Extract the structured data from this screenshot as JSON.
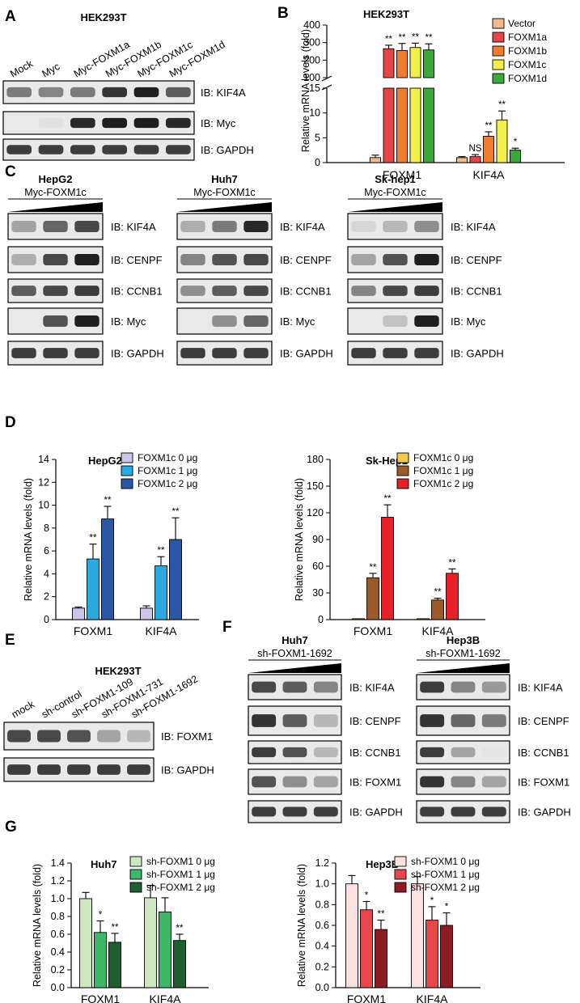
{
  "panel_letters": [
    "A",
    "B",
    "C",
    "D",
    "E",
    "F",
    "G"
  ],
  "A": {
    "title": "HEK293T",
    "lanes": [
      "Mock",
      "Myc",
      "Myc-FOXM1a",
      "Myc-FOXM1b",
      "Myc-FOXM1c",
      "Myc-FOXM1d"
    ],
    "blots": [
      {
        "label": "IB: KIF4A",
        "intensity": [
          0.55,
          0.5,
          0.55,
          0.9,
          1.0,
          0.7
        ]
      },
      {
        "label": "IB: Myc",
        "intensity": [
          0.02,
          0.04,
          0.95,
          1.0,
          1.0,
          0.95
        ]
      },
      {
        "label": "IB: GAPDH",
        "intensity": [
          0.85,
          0.85,
          0.85,
          0.85,
          0.85,
          0.85
        ]
      }
    ]
  },
  "C": {
    "groups": [
      {
        "cell": "HepG2",
        "treatment": "Myc-FOXM1c",
        "blots": [
          {
            "label": "IB: KIF4A",
            "intensity": [
              0.35,
              0.65,
              0.8
            ]
          },
          {
            "label": "IB: CENPF",
            "intensity": [
              0.3,
              0.8,
              1.0
            ]
          },
          {
            "label": "IB: CCNB1",
            "intensity": [
              0.7,
              0.8,
              0.85
            ]
          },
          {
            "label": "IB: Myc",
            "intensity": [
              0.02,
              0.75,
              1.0
            ]
          },
          {
            "label": "IB: GAPDH",
            "intensity": [
              0.85,
              0.85,
              0.85
            ]
          }
        ]
      },
      {
        "cell": "Huh7",
        "treatment": "Myc-FOXM1c",
        "blots": [
          {
            "label": "IB: KIF4A",
            "intensity": [
              0.3,
              0.55,
              0.95
            ]
          },
          {
            "label": "IB: CENPF",
            "intensity": [
              0.5,
              0.75,
              0.8
            ]
          },
          {
            "label": "IB: CCNB1",
            "intensity": [
              0.45,
              0.7,
              0.8
            ]
          },
          {
            "label": "IB: Myc",
            "intensity": [
              0.02,
              0.45,
              0.65
            ]
          },
          {
            "label": "IB: GAPDH",
            "intensity": [
              0.85,
              0.85,
              0.85
            ]
          }
        ]
      },
      {
        "cell": "Sk-hep1",
        "treatment": "Myc-FOXM1c",
        "blots": [
          {
            "label": "IB: KIF4A",
            "intensity": [
              0.1,
              0.25,
              0.45
            ]
          },
          {
            "label": "IB: CENPF",
            "intensity": [
              0.35,
              0.75,
              1.0
            ]
          },
          {
            "label": "IB: CCNB1",
            "intensity": [
              0.5,
              0.8,
              0.85
            ]
          },
          {
            "label": "IB: Myc",
            "intensity": [
              0.02,
              0.2,
              1.0
            ]
          },
          {
            "label": "IB: GAPDH",
            "intensity": [
              0.85,
              0.85,
              0.85
            ]
          }
        ]
      }
    ]
  },
  "E": {
    "title": "HEK293T",
    "lanes": [
      "mock",
      "sh-control",
      "sh-FOXM1-109",
      "sh-FOXM1-731",
      "sh-FOXM1-1692"
    ],
    "blots": [
      {
        "label": "IB: FOXM1",
        "intensity": [
          0.8,
          0.8,
          0.75,
          0.35,
          0.25
        ]
      },
      {
        "label": "IB: GAPDH",
        "intensity": [
          0.85,
          0.85,
          0.85,
          0.85,
          0.85
        ]
      }
    ]
  },
  "F": {
    "groups": [
      {
        "cell": "Huh7",
        "treatment": "sh-FOXM1-1692",
        "blots": [
          {
            "label": "IB: KIF4A",
            "intensity": [
              0.8,
              0.7,
              0.5
            ]
          },
          {
            "label": "IB: CENPF",
            "intensity": [
              0.9,
              0.7,
              0.25
            ]
          },
          {
            "label": "IB: CCNB1",
            "intensity": [
              0.85,
              0.75,
              0.25
            ]
          },
          {
            "label": "IB: FOXM1",
            "intensity": [
              0.75,
              0.45,
              0.35
            ]
          },
          {
            "label": "IB: GAPDH",
            "intensity": [
              0.85,
              0.85,
              0.85
            ]
          }
        ]
      },
      {
        "cell": "Hep3B",
        "treatment": "sh-FOXM1-1692",
        "blots": [
          {
            "label": "IB: KIF4A",
            "intensity": [
              0.85,
              0.5,
              0.4
            ]
          },
          {
            "label": "IB: CENPF",
            "intensity": [
              0.9,
              0.65,
              0.55
            ]
          },
          {
            "label": "IB: CCNB1",
            "intensity": [
              0.85,
              0.35,
              0.03
            ]
          },
          {
            "label": "IB: FOXM1",
            "intensity": [
              0.9,
              0.5,
              0.35
            ]
          },
          {
            "label": "IB: GAPDH",
            "intensity": [
              0.85,
              0.85,
              0.85
            ]
          }
        ]
      }
    ]
  },
  "chart_data": [
    {
      "id": "B",
      "type": "bar",
      "title": "HEK293T",
      "ylabel": "Relative mRNA levels (fold)",
      "categories": [
        "FOXM1",
        "KIF4A"
      ],
      "axis_break": {
        "lower": [
          0,
          15
        ],
        "upper": [
          100,
          400
        ]
      },
      "lower_ticks": [
        0,
        5,
        10,
        15
      ],
      "upper_ticks": [
        100,
        200,
        300,
        400
      ],
      "series": [
        {
          "name": "Vector",
          "color": "#f2b98c",
          "values": [
            1.0,
            1.0
          ],
          "errors": [
            0.5,
            0.2
          ],
          "sig": [
            "",
            ""
          ]
        },
        {
          "name": "FOXM1a",
          "color": "#e64548",
          "values": [
            265,
            1.2
          ],
          "errors": [
            20,
            0.4
          ],
          "sig": [
            "**",
            "NS"
          ]
        },
        {
          "name": "FOXM1b",
          "color": "#f07d2b",
          "values": [
            255,
            5.3
          ],
          "errors": [
            40,
            0.9
          ],
          "sig": [
            "**",
            "**"
          ]
        },
        {
          "name": "FOXM1c",
          "color": "#f3ef4a",
          "values": [
            272,
            8.6
          ],
          "errors": [
            25,
            1.8
          ],
          "sig": [
            "**",
            "**"
          ]
        },
        {
          "name": "FOXM1d",
          "color": "#3aa83a",
          "values": [
            258,
            2.5
          ],
          "errors": [
            35,
            0.4
          ],
          "sig": [
            "**",
            "*"
          ]
        }
      ]
    },
    {
      "id": "D-left",
      "type": "bar",
      "title": "HepG2",
      "ylabel": "Relative mRNA levels (fold)",
      "categories": [
        "FOXM1",
        "KIF4A"
      ],
      "ylim": [
        0,
        14
      ],
      "yticks": [
        0,
        2,
        4,
        6,
        8,
        10,
        12,
        14
      ],
      "series": [
        {
          "name": "FOXM1c  0 μg",
          "color": "#c9c6ea",
          "values": [
            1.0,
            1.0
          ],
          "errors": [
            0.1,
            0.2
          ],
          "sig": [
            "",
            ""
          ]
        },
        {
          "name": "FOXM1c  1 μg",
          "color": "#2aa8e0",
          "values": [
            5.3,
            4.7
          ],
          "errors": [
            1.3,
            0.8
          ],
          "sig": [
            "**",
            "**"
          ]
        },
        {
          "name": "FOXM1c  2 μg",
          "color": "#2b57a6",
          "values": [
            8.8,
            7.0
          ],
          "errors": [
            1.1,
            1.9
          ],
          "sig": [
            "**",
            "**"
          ]
        }
      ]
    },
    {
      "id": "D-right",
      "type": "bar",
      "title": "Sk-Hep1",
      "ylabel": "Relative mRNA levels (fold)",
      "categories": [
        "FOXM1",
        "KIF4A"
      ],
      "ylim": [
        0,
        180
      ],
      "yticks": [
        0,
        30,
        60,
        90,
        120,
        150,
        180
      ],
      "series": [
        {
          "name": "FOXM1c  0 μg",
          "color": "#f2c94c",
          "values": [
            1.0,
            1.0
          ],
          "errors": [
            0,
            0
          ],
          "sig": [
            "",
            ""
          ]
        },
        {
          "name": "FOXM1c  1 μg",
          "color": "#9a5a2a",
          "values": [
            47,
            22
          ],
          "errors": [
            5,
            2
          ],
          "sig": [
            "**",
            "**"
          ]
        },
        {
          "name": "FOXM1c  2 μg",
          "color": "#e8202a",
          "values": [
            115,
            52
          ],
          "errors": [
            14,
            5
          ],
          "sig": [
            "**",
            "**"
          ]
        }
      ]
    },
    {
      "id": "G-left",
      "type": "bar",
      "title": "Huh7",
      "ylabel": "Relative mRNA levels (fold)",
      "categories": [
        "FOXM1",
        "KIF4A"
      ],
      "ylim": [
        0,
        1.4
      ],
      "yticks": [
        0,
        0.2,
        0.4,
        0.6,
        0.8,
        1.0,
        1.2,
        1.4
      ],
      "series": [
        {
          "name": "sh-FOXM1   0 μg",
          "color": "#cde8c0",
          "values": [
            1.0,
            1.01
          ],
          "errors": [
            0.07,
            0.14
          ],
          "sig": [
            "",
            ""
          ]
        },
        {
          "name": "sh-FOXM1   1 μg",
          "color": "#3db86b",
          "values": [
            0.62,
            0.85
          ],
          "errors": [
            0.13,
            0.16
          ],
          "sig": [
            "*",
            ""
          ]
        },
        {
          "name": "sh-FOXM1   2 μg",
          "color": "#1f5e2f",
          "values": [
            0.51,
            0.53
          ],
          "errors": [
            0.1,
            0.07
          ],
          "sig": [
            "**",
            "**"
          ]
        }
      ]
    },
    {
      "id": "G-right",
      "type": "bar",
      "title": "Hep3B",
      "ylabel": "Relative mRNA levels (fold)",
      "categories": [
        "FOXM1",
        "KIF4A"
      ],
      "ylim": [
        0,
        1.2
      ],
      "yticks": [
        0.0,
        0.2,
        0.4,
        0.6,
        0.8,
        1.0,
        1.2
      ],
      "series": [
        {
          "name": "sh-FOXM1   0 μg",
          "color": "#fbe1df",
          "values": [
            1.0,
            1.0
          ],
          "errors": [
            0.08,
            0.07
          ],
          "sig": [
            "",
            ""
          ]
        },
        {
          "name": "sh-FOXM1   1 μg",
          "color": "#e8484a",
          "values": [
            0.75,
            0.65
          ],
          "errors": [
            0.08,
            0.13
          ],
          "sig": [
            "*",
            "*"
          ]
        },
        {
          "name": "sh-FOXM1   2 μg",
          "color": "#8c1c22",
          "values": [
            0.56,
            0.6
          ],
          "errors": [
            0.09,
            0.12
          ],
          "sig": [
            "**",
            "*"
          ]
        }
      ]
    }
  ]
}
